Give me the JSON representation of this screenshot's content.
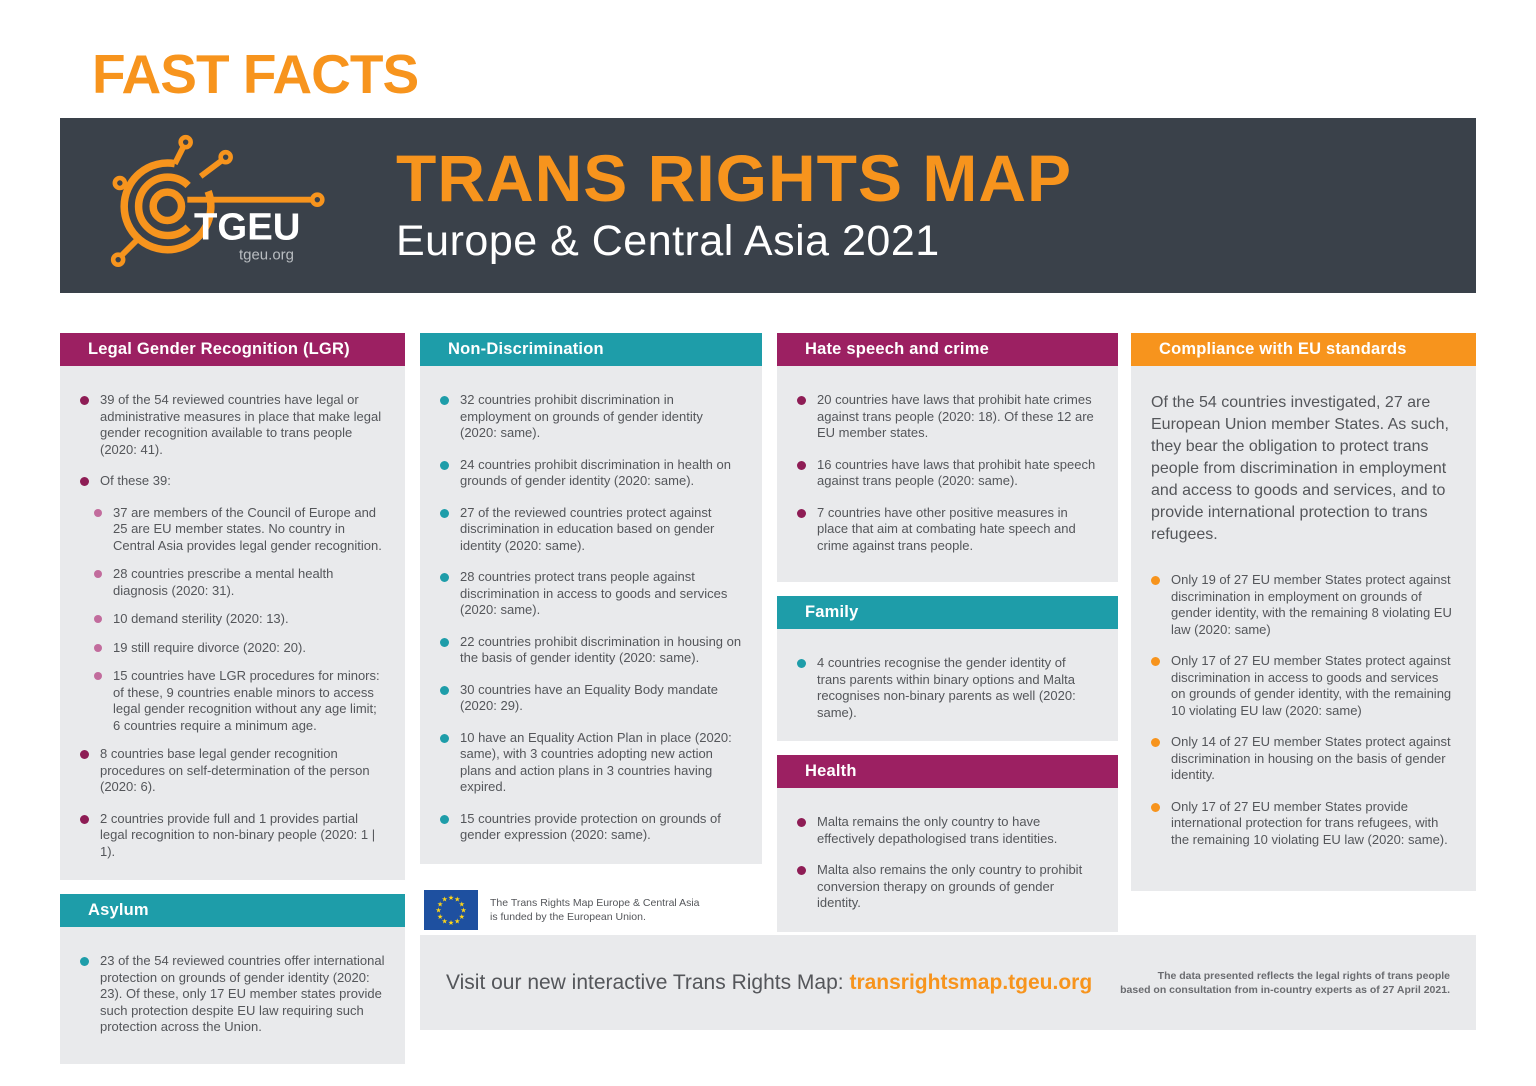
{
  "header": {
    "eyebrow": "FAST FACTS",
    "title": "TRANS RIGHTS MAP",
    "subtitle": "Europe & Central Asia 2021",
    "logo_text": "TGEU",
    "logo_url": "tgeu.org"
  },
  "colors": {
    "orange": "#F7941D",
    "magenta_header": "#9C2062",
    "magenta_bullet": "#8E1D55",
    "pink_sub_bullet": "#C26C9D",
    "teal": "#1E9DA9",
    "dark_bar": "#3A414A",
    "panel_bg": "#E9EAEC",
    "text": "#54565A",
    "eu_flag_blue": "#1E50A0",
    "eu_star_yellow": "#FFD617"
  },
  "sections": {
    "lgr": {
      "title": "Legal Gender Recognition (LGR)",
      "bullets": [
        {
          "level": 1,
          "text": "39 of the 54 reviewed countries have legal or administrative measures in place that make legal gender recognition available to trans people (2020: 41)."
        },
        {
          "level": 1,
          "text": "Of these 39:"
        },
        {
          "level": 2,
          "text": "37 are members of the Council of Europe and 25 are EU member states. No country in Central Asia provides legal gender recognition."
        },
        {
          "level": 2,
          "text": "28 countries prescribe a mental health diagnosis (2020: 31)."
        },
        {
          "level": 2,
          "text": "10 demand sterility (2020: 13)."
        },
        {
          "level": 2,
          "text": "19 still require divorce (2020: 20)."
        },
        {
          "level": 2,
          "text": "15 countries have LGR procedures for minors: of these, 9 countries enable minors to access legal gender recognition without any age limit; 6 countries require a minimum age."
        },
        {
          "level": 1,
          "text": "8 countries base legal gender recognition procedures on self-determination of the person (2020: 6)."
        },
        {
          "level": 1,
          "text": "2 countries provide full and 1 provides partial legal recognition to non-binary people (2020: 1 | 1)."
        }
      ]
    },
    "asylum": {
      "title": "Asylum",
      "bullets": [
        {
          "level": 1,
          "text": "23 of the 54 reviewed countries offer international protection on grounds of gender identity (2020: 23). Of these, only 17 EU member states provide such protection despite EU law requiring such protection across the Union."
        }
      ]
    },
    "nondiscrimination": {
      "title": "Non-Discrimination",
      "bullets": [
        {
          "level": 1,
          "text": "32 countries prohibit discrimination in employment on grounds of gender identity (2020: same)."
        },
        {
          "level": 1,
          "text": "24 countries prohibit discrimination in health on grounds of gender identity (2020: same)."
        },
        {
          "level": 1,
          "text": "27 of the reviewed countries protect against discrimination in education based on gender identity (2020: same)."
        },
        {
          "level": 1,
          "text": "28 countries protect trans people against discrimination in access to goods and services (2020: same)."
        },
        {
          "level": 1,
          "text": "22 countries prohibit discrimination in housing on the basis of gender identity (2020: same)."
        },
        {
          "level": 1,
          "text": "30 countries have an Equality Body mandate (2020: 29)."
        },
        {
          "level": 1,
          "text": "10 have an Equality Action Plan in place (2020: same), with 3 countries adopting new action plans and action plans in 3 countries having expired."
        },
        {
          "level": 1,
          "text": "15 countries provide protection on grounds of gender expression (2020: same)."
        }
      ]
    },
    "hate": {
      "title": "Hate speech and crime",
      "bullets": [
        {
          "level": 1,
          "text": "20 countries have laws that prohibit hate crimes against trans people (2020: 18). Of these 12 are EU member states."
        },
        {
          "level": 1,
          "text": "16 countries have laws that prohibit hate speech against trans people (2020: same)."
        },
        {
          "level": 1,
          "text": "7 countries have other positive measures in place that aim at combating hate speech and crime against trans people."
        }
      ]
    },
    "family": {
      "title": "Family",
      "bullets": [
        {
          "level": 1,
          "text": "4 countries recognise the gender identity of trans parents within binary options and Malta recognises non-binary parents as well (2020: same)."
        }
      ]
    },
    "health": {
      "title": "Health",
      "bullets": [
        {
          "level": 1,
          "text": "Malta remains the only country to have effectively depathologised trans identities."
        },
        {
          "level": 1,
          "text": "Malta also remains the only country to prohibit conversion therapy on grounds of gender identity."
        }
      ]
    },
    "compliance": {
      "title": "Compliance with EU standards",
      "intro": "Of the 54 countries investigated, 27 are European Union member States. As such, they bear the obligation to protect trans people from discrimination in employment and access to goods and services, and to provide international protection to trans refugees.",
      "bullets": [
        {
          "level": 1,
          "text": "Only 19 of 27 EU member States protect against discrimination in employment on grounds of gender identity, with the remaining 8 violating EU law (2020: same)"
        },
        {
          "level": 1,
          "text": "Only 17 of 27 EU member States protect against discrimination in access to goods and services on grounds of gender identity, with the remaining 10 violating EU law (2020: same)"
        },
        {
          "level": 1,
          "text": "Only 14 of 27 EU member States protect against discrimination in housing on the basis of gender identity."
        },
        {
          "level": 1,
          "text": "Only 17 of 27 EU member States provide international protection for trans refugees, with the remaining 10 violating EU law (2020: same)."
        }
      ]
    }
  },
  "footer": {
    "funding_line1": "The Trans Rights Map Europe & Central Asia",
    "funding_line2": "is funded by the European Union.",
    "cta_label": "Visit our new interactive Trans Rights Map: ",
    "cta_link": "transrightsmap.tgeu.org",
    "disclaimer_line1": "The data presented reflects the legal rights of trans people",
    "disclaimer_line2": "based on consultation from in-country experts as of 27 April 2021."
  }
}
